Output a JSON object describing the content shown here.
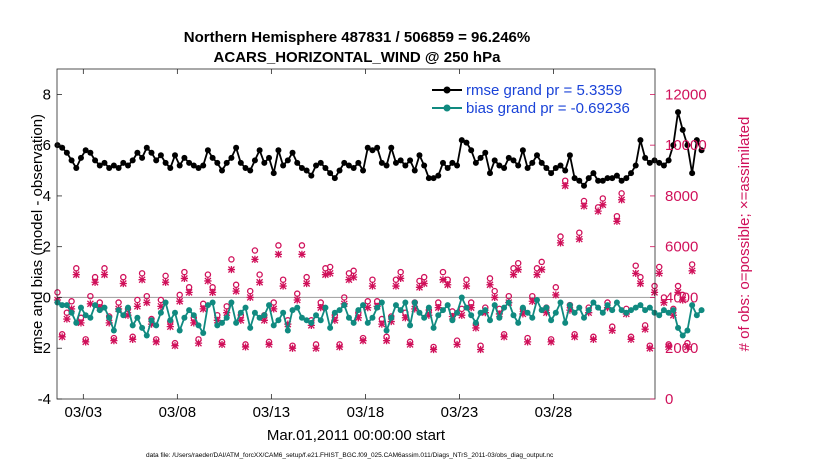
{
  "chart_data": {
    "type": "line",
    "title_line1": "Northern Hemisphere 487831 / 506859 = 96.246%",
    "title_line2": "ACARS_HORIZONTAL_WIND @ 250 hPa",
    "xlabel": "Mar.01,2011 00:00:00 start",
    "ylabel_left": "rmse and bias (model - observation)",
    "ylabel_right": "# of obs: o=possible; ×=assimilated",
    "footnote": "data file: /Users/raeder/DAI/ATM_forcXX/CAM6_setup/f.e21.FHIST_BGC.f09_025.CAM6assim.011/Diags_NTrS_2011-03/obs_diag_output.nc",
    "x_unit": "days since Mar.01 00:00",
    "xlim": [
      0.6,
      32.4
    ],
    "ylim_left": [
      -4,
      9
    ],
    "ylim_right": [
      0,
      13000
    ],
    "x_ticks": [
      {
        "x": 2,
        "label": "03/03"
      },
      {
        "x": 7,
        "label": "03/08"
      },
      {
        "x": 12,
        "label": "03/13"
      },
      {
        "x": 17,
        "label": "03/18"
      },
      {
        "x": 22,
        "label": "03/23"
      },
      {
        "x": 27,
        "label": "03/28"
      }
    ],
    "y_ticks_left": [
      8,
      6,
      4,
      2,
      0,
      -2,
      -4
    ],
    "y_ticks_right": [
      12000,
      10000,
      8000,
      6000,
      4000,
      2000,
      0
    ],
    "legend": [
      {
        "name": "rmse",
        "label": "rmse grand pr = 5.3359",
        "color": "#000000"
      },
      {
        "name": "bias",
        "label": "bias grand pr = -0.69236",
        "color": "#108a80"
      }
    ],
    "series": [
      {
        "name": "rmse",
        "axis": "left",
        "x_start": 0.625,
        "x_step": 0.25,
        "values": [
          6.0,
          5.9,
          5.7,
          5.4,
          5.1,
          5.5,
          5.8,
          5.7,
          5.4,
          5.2,
          5.3,
          5.1,
          5.2,
          5.1,
          5.3,
          5.2,
          5.4,
          5.7,
          5.5,
          5.9,
          5.7,
          5.4,
          5.6,
          5.3,
          5.1,
          5.6,
          5.2,
          5.5,
          5.3,
          5.2,
          5.1,
          5.2,
          5.8,
          5.5,
          5.3,
          5.0,
          5.3,
          5.5,
          5.9,
          5.3,
          5.1,
          5.0,
          5.4,
          5.8,
          5.3,
          5.5,
          4.9,
          5.8,
          5.2,
          5.4,
          5.7,
          5.3,
          5.1,
          5.0,
          4.8,
          5.2,
          5.3,
          5.1,
          4.9,
          4.7,
          5.0,
          5.3,
          5.2,
          5.1,
          5.3,
          5.0,
          5.9,
          5.8,
          5.9,
          5.3,
          5.2,
          5.9,
          5.3,
          5.4,
          5.2,
          5.4,
          5.0,
          5.6,
          5.2,
          4.7,
          4.7,
          4.8,
          5.3,
          5.1,
          5.3,
          5.2,
          6.2,
          6.1,
          5.8,
          5.3,
          5.5,
          5.7,
          4.9,
          5.4,
          5.2,
          5.1,
          5.5,
          5.4,
          5.2,
          5.8,
          5.1,
          5.3,
          5.6,
          5.3,
          5.1,
          4.9,
          5.1,
          5.2,
          5.0,
          5.6,
          4.7,
          4.6,
          4.4,
          4.7,
          4.9,
          4.6,
          4.6,
          4.7,
          4.7,
          4.8,
          4.6,
          4.7,
          4.9,
          5.2,
          6.2,
          5.5,
          5.3,
          5.4,
          5.3,
          5.2,
          5.4,
          6.0,
          7.3,
          6.6,
          6.0,
          4.9,
          6.2,
          5.8
        ]
      },
      {
        "name": "bias",
        "axis": "left",
        "x_start": 0.625,
        "x_step": 0.25,
        "values": [
          -0.2,
          -0.3,
          -0.3,
          -0.6,
          -1.0,
          -0.4,
          -0.7,
          -0.8,
          -0.3,
          -0.5,
          -0.4,
          -0.8,
          -1.3,
          -0.5,
          -0.7,
          -0.4,
          -1.1,
          -0.8,
          -1.2,
          -1.5,
          -0.9,
          -1.1,
          -0.6,
          -0.2,
          -0.9,
          -0.6,
          -1.3,
          -0.8,
          -0.5,
          -0.7,
          -1.1,
          -1.4,
          -0.3,
          -0.2,
          -1.1,
          -1.0,
          -0.8,
          -0.2,
          -1.0,
          -0.6,
          -0.4,
          -1.2,
          -0.6,
          -0.8,
          -0.7,
          -0.3,
          -1.1,
          -0.9,
          -0.6,
          -1.3,
          -0.5,
          -0.4,
          -0.8,
          -0.9,
          -1.0,
          -0.7,
          -0.9,
          -0.4,
          -1.2,
          -0.6,
          -0.5,
          -0.3,
          -0.8,
          -1.0,
          -0.5,
          -0.3,
          -1.0,
          -0.8,
          -0.4,
          -0.2,
          -1.3,
          -0.8,
          -0.3,
          -0.5,
          -0.2,
          -1.1,
          -0.2,
          -0.6,
          -0.8,
          -0.4,
          -1.2,
          -0.7,
          -0.5,
          -0.3,
          -0.9,
          -0.6,
          0.0,
          -0.4,
          -0.7,
          -1.0,
          -0.6,
          -0.5,
          -0.9,
          -0.3,
          -0.8,
          -0.4,
          -0.2,
          -0.7,
          -1.0,
          -0.4,
          -0.6,
          -0.8,
          -0.1,
          -0.5,
          -0.4,
          -0.9,
          -0.6,
          -0.2,
          -1.0,
          -0.3,
          -0.6,
          -0.4,
          -0.8,
          -0.5,
          -0.2,
          -0.4,
          -0.6,
          -0.3,
          -0.5,
          -0.2,
          -0.5,
          -0.6,
          -0.5,
          -0.4,
          -0.3,
          -0.5,
          -0.4,
          -0.6,
          -0.7,
          -0.5,
          -0.6,
          -0.5,
          -1.2,
          -1.5,
          -1.3,
          -0.3,
          -0.7,
          -0.5
        ]
      },
      {
        "name": "possible",
        "axis": "right",
        "marker": "o",
        "x_start": 0.625,
        "x_step": 0.25,
        "values": [
          4200,
          2550,
          3400,
          3850,
          5150,
          3200,
          2350,
          4050,
          4800,
          3800,
          5150,
          3250,
          2400,
          3800,
          4800,
          3550,
          2450,
          3900,
          4950,
          4050,
          3150,
          2350,
          3900,
          4850,
          3050,
          2200,
          4100,
          5000,
          4400,
          3200,
          2350,
          3750,
          4900,
          4400,
          3300,
          2250,
          3650,
          5500,
          4500,
          3300,
          2150,
          4250,
          5850,
          4900,
          3300,
          2250,
          3800,
          6050,
          4700,
          3100,
          2100,
          4150,
          6050,
          4800,
          3100,
          2150,
          3800,
          5150,
          5200,
          3300,
          2150,
          4000,
          4950,
          5050,
          3400,
          2400,
          3850,
          4700,
          3850,
          3150,
          2450,
          3250,
          4700,
          5000,
          3400,
          2250,
          3800,
          4650,
          4800,
          3500,
          2050,
          3800,
          5000,
          4700,
          3450,
          2300,
          3550,
          4700,
          3800,
          2950,
          2100,
          3600,
          4750,
          4250,
          3550,
          2550,
          4050,
          5150,
          5350,
          3550,
          2400,
          4050,
          5150,
          5400,
          3600,
          2350,
          4400,
          6400,
          8600,
          3700,
          2550,
          6550,
          7800,
          3600,
          2450,
          7550,
          7900,
          3800,
          2850,
          7200,
          8100,
          3550,
          2450,
          5250,
          4800,
          2900,
          2100,
          4450,
          5200,
          4000,
          2150,
          3550,
          4450,
          4100,
          2200,
          5300
        ]
      },
      {
        "name": "assimilated",
        "axis": "right",
        "marker": "x",
        "x_start": 0.625,
        "x_step": 0.25,
        "values": [
          3900,
          2450,
          3150,
          3550,
          4900,
          3000,
          2250,
          3750,
          4600,
          3600,
          4900,
          3000,
          2300,
          3550,
          4550,
          3300,
          2350,
          3650,
          4700,
          3800,
          2950,
          2250,
          3650,
          4600,
          2850,
          2100,
          3850,
          4750,
          4200,
          3000,
          2200,
          3550,
          4650,
          4200,
          3100,
          2150,
          3400,
          5100,
          4250,
          3100,
          2050,
          4000,
          5500,
          4600,
          3100,
          2150,
          3550,
          5700,
          4450,
          2950,
          2000,
          3900,
          5700,
          4550,
          2900,
          2000,
          3600,
          4900,
          4950,
          3100,
          2050,
          3750,
          4700,
          4800,
          3200,
          2300,
          3600,
          4450,
          3650,
          2950,
          2300,
          3050,
          4450,
          4750,
          3200,
          2150,
          3550,
          4400,
          4550,
          3300,
          1950,
          3600,
          4700,
          4500,
          3250,
          2150,
          3300,
          4450,
          3600,
          2800,
          1950,
          3400,
          4500,
          4000,
          3350,
          2450,
          3800,
          4900,
          5100,
          3350,
          2250,
          3850,
          4900,
          5100,
          3400,
          2250,
          4100,
          6150,
          8400,
          3500,
          2450,
          6300,
          7600,
          3400,
          2350,
          7400,
          7650,
          3600,
          2700,
          7000,
          7850,
          3350,
          2350,
          4950,
          4550,
          2750,
          2000,
          4200,
          4950,
          3800,
          2050,
          3300,
          4200,
          3900,
          2050,
          5050
        ]
      }
    ]
  }
}
